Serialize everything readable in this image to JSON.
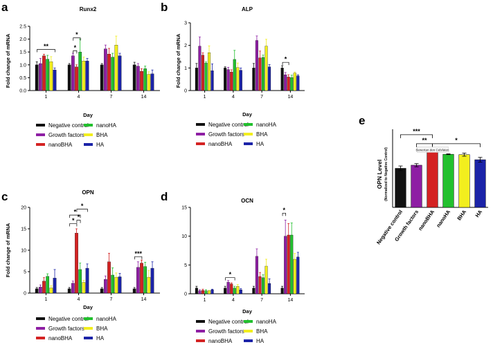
{
  "colors": {
    "Negative control": "#111111",
    "Growth factors": "#8e1fa4",
    "nanoBHA": "#d42323",
    "nanoHA": "#22c02e",
    "BHA": "#f2ee1e",
    "HA": "#1b23a8"
  },
  "legend_order": [
    "Negative control",
    "nanoHA",
    "Growth factors",
    "BHA",
    "nanoBHA",
    "HA"
  ],
  "chart_data": [
    {
      "id": "a",
      "panel_label": "a",
      "type": "bar",
      "title": "Runx2",
      "ylabel": "Fold change of mRNA",
      "xlabel": "Day",
      "ylim": [
        0,
        2.5
      ],
      "yticks": [
        "0.0",
        "0.5",
        "1.0",
        "1.5",
        "2.0",
        "2.5"
      ],
      "ytick_values": [
        0,
        0.5,
        1.0,
        1.5,
        2.0,
        2.5
      ],
      "categories": [
        "1",
        "4",
        "7",
        "14"
      ],
      "series": [
        {
          "name": "Negative control",
          "values": [
            1.0,
            1.0,
            1.0,
            1.0
          ],
          "errors": [
            0.12,
            0.05,
            0.05,
            0.1
          ]
        },
        {
          "name": "Growth factors",
          "values": [
            1.05,
            1.35,
            1.62,
            0.95
          ],
          "errors": [
            0.2,
            0.1,
            0.15,
            0.1
          ]
        },
        {
          "name": "nanoBHA",
          "values": [
            1.35,
            0.92,
            1.42,
            0.75
          ],
          "errors": [
            0.06,
            0.08,
            0.22,
            0.1
          ]
        },
        {
          "name": "nanoHA",
          "values": [
            1.22,
            1.5,
            1.3,
            0.85
          ],
          "errors": [
            0.15,
            0.5,
            0.15,
            0.1
          ]
        },
        {
          "name": "BHA",
          "values": [
            1.12,
            1.15,
            1.77,
            0.63
          ],
          "errors": [
            0.2,
            0.15,
            0.35,
            0.1
          ]
        },
        {
          "name": "HA",
          "values": [
            0.8,
            1.15,
            1.35,
            0.65
          ],
          "errors": [
            0.08,
            0.1,
            0.1,
            0.15
          ]
        }
      ],
      "annotations": [
        {
          "text": "**",
          "category": 0,
          "from": 0,
          "to": 5,
          "y": 1.6
        },
        {
          "text": "*",
          "category": 1,
          "from": 1,
          "to": 2,
          "y": 1.55
        },
        {
          "text": "*",
          "category": 1,
          "from": 1,
          "to": 3,
          "y": 2.05
        }
      ]
    },
    {
      "id": "b",
      "panel_label": "b",
      "type": "bar",
      "title": "ALP",
      "ylabel": "Fold change of mRNA",
      "xlabel": "Day",
      "ylim": [
        0,
        3
      ],
      "yticks": [
        "0",
        "1",
        "2",
        "3"
      ],
      "ytick_values": [
        0,
        1,
        2,
        3
      ],
      "categories": [
        "1",
        "4",
        "7",
        "14"
      ],
      "series": [
        {
          "name": "Negative control",
          "values": [
            1.0,
            1.0,
            1.0,
            1.0
          ],
          "errors": [
            0.2,
            0.05,
            0.2,
            0.1
          ]
        },
        {
          "name": "Growth factors",
          "values": [
            1.97,
            0.93,
            2.22,
            0.7
          ],
          "errors": [
            0.4,
            0.1,
            0.2,
            0.1
          ]
        },
        {
          "name": "nanoBHA",
          "values": [
            1.57,
            0.82,
            1.45,
            0.6
          ],
          "errors": [
            0.1,
            0.1,
            0.3,
            0.1
          ]
        },
        {
          "name": "nanoHA",
          "values": [
            1.22,
            1.38,
            1.47,
            0.58
          ],
          "errors": [
            0.05,
            0.4,
            0.1,
            0.1
          ]
        },
        {
          "name": "BHA",
          "values": [
            1.68,
            1.02,
            1.97,
            0.77
          ],
          "errors": [
            0.3,
            0.2,
            0.3,
            0.05
          ]
        },
        {
          "name": "HA",
          "values": [
            0.88,
            0.9,
            1.05,
            0.65
          ],
          "errors": [
            0.3,
            0.1,
            0.1,
            0.05
          ]
        }
      ],
      "annotations": [
        {
          "text": "*",
          "category": 3,
          "from": 0,
          "to": 2,
          "y": 1.25
        }
      ]
    },
    {
      "id": "c",
      "panel_label": "c",
      "type": "bar",
      "title": "OPN",
      "ylabel": "Fold change of mRNA",
      "xlabel": "Day",
      "ylim": [
        0,
        20
      ],
      "yticks": [
        "0",
        "5",
        "10",
        "15",
        "20"
      ],
      "ytick_values": [
        0,
        5,
        10,
        15,
        20
      ],
      "categories": [
        "1",
        "4",
        "7",
        "14"
      ],
      "series": [
        {
          "name": "Negative control",
          "values": [
            1.0,
            1.0,
            1.0,
            1.0
          ],
          "errors": [
            0.3,
            0.3,
            0.3,
            0.3
          ]
        },
        {
          "name": "Growth factors",
          "values": [
            1.4,
            2.3,
            3.2,
            6.0
          ],
          "errors": [
            0.5,
            0.5,
            0.8,
            1.3
          ]
        },
        {
          "name": "nanoBHA",
          "values": [
            2.8,
            14.0,
            7.3,
            7.0
          ],
          "errors": [
            0.8,
            1.0,
            2.0,
            0.7
          ]
        },
        {
          "name": "nanoHA",
          "values": [
            3.9,
            5.5,
            4.2,
            6.2
          ],
          "errors": [
            0.6,
            1.5,
            1.7,
            1.0
          ]
        },
        {
          "name": "BHA",
          "values": [
            1.2,
            2.5,
            3.7,
            3.7
          ],
          "errors": [
            0.5,
            0.5,
            1.0,
            1.6
          ]
        },
        {
          "name": "HA",
          "values": [
            3.5,
            5.8,
            3.8,
            5.8
          ],
          "errors": [
            2.0,
            1.0,
            0.8,
            1.5
          ]
        }
      ],
      "annotations": [
        {
          "text": "*",
          "category": 1,
          "from": 0,
          "to": 2,
          "y": 16.2
        },
        {
          "text": "*",
          "category": 1,
          "from": 0,
          "to": 3,
          "y": 18.2
        },
        {
          "text": "*",
          "category": 1,
          "from": 2,
          "to": 5,
          "y": 19.6
        },
        {
          "text": "*",
          "category": 1,
          "from": 2,
          "to": 3,
          "y": 17.0
        },
        {
          "text": "***",
          "category": 3,
          "from": 0,
          "to": 2,
          "y": 8.5
        }
      ]
    },
    {
      "id": "d",
      "panel_label": "d",
      "type": "bar",
      "title": "OCN",
      "ylabel": "",
      "xlabel": "Day",
      "ylim": [
        0,
        15
      ],
      "yticks": [
        "0",
        "5",
        "10",
        "15"
      ],
      "ytick_values": [
        0,
        5,
        10,
        15
      ],
      "categories": [
        "1",
        "4",
        "7",
        "14"
      ],
      "series": [
        {
          "name": "Negative control",
          "values": [
            1.0,
            1.0,
            1.0,
            1.0
          ],
          "errors": [
            0.3,
            0.3,
            0.3,
            0.3
          ]
        },
        {
          "name": "Growth factors",
          "values": [
            0.5,
            2.0,
            6.5,
            10.0
          ],
          "errors": [
            0.2,
            0.3,
            1.3,
            2.8
          ]
        },
        {
          "name": "nanoBHA",
          "values": [
            0.6,
            1.7,
            3.0,
            10.2
          ],
          "errors": [
            0.2,
            0.2,
            0.7,
            2.0
          ]
        },
        {
          "name": "nanoHA",
          "values": [
            0.5,
            1.0,
            2.8,
            10.2
          ],
          "errors": [
            0.2,
            0.3,
            0.5,
            2.1
          ]
        },
        {
          "name": "BHA",
          "values": [
            0.5,
            1.3,
            4.8,
            6.0
          ],
          "errors": [
            0.1,
            0.3,
            1.2,
            1.0
          ]
        },
        {
          "name": "HA",
          "values": [
            0.7,
            0.7,
            1.8,
            6.4
          ],
          "errors": [
            0.1,
            0.2,
            0.8,
            0.8
          ]
        }
      ],
      "annotations": [
        {
          "text": "*",
          "category": 1,
          "from": 0,
          "to": 3,
          "y": 2.8
        },
        {
          "text": "*",
          "category": 3,
          "from": 0,
          "to": 1,
          "y": 14.0
        }
      ]
    },
    {
      "id": "e",
      "panel_label": "e",
      "type": "bar",
      "title": "",
      "ylabel": "OPN Level",
      "ylabel_sub": "(Normalized to Negative Control)",
      "ylim": [
        0,
        2.0
      ],
      "categories": [
        "Negative control",
        "Growth factors",
        "nanoBHA",
        "nanoHA",
        "BHA",
        "HA"
      ],
      "values": [
        1.0,
        1.08,
        1.48,
        1.36,
        1.35,
        1.22
      ],
      "errors": [
        0.06,
        0.04,
        0.04,
        0.01,
        0.04,
        0.06
      ],
      "annotations": [
        {
          "text": "***",
          "from": 0,
          "to": 2,
          "y": 1.86
        },
        {
          "text": "**",
          "from": 1,
          "to": 2,
          "y": 1.63
        },
        {
          "text": "*",
          "from": 2,
          "to": 5,
          "y": 1.63
        }
      ],
      "watermark": "Bewertan den Celsfaten"
    }
  ]
}
